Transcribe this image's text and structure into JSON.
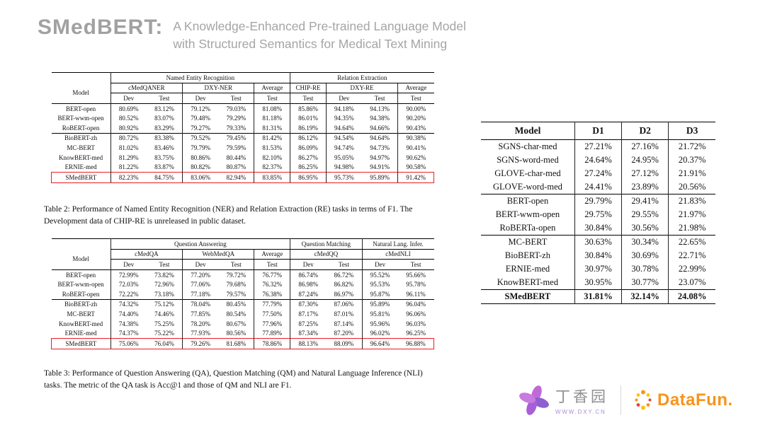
{
  "title": {
    "brand": "SMedBERT:",
    "subtitle_lines": [
      "A Knowledge-Enhanced Pre-trained Language Model",
      "with Structured Semantics for Medical Text Mining"
    ]
  },
  "table2": {
    "model_label": "Model",
    "group_headers": [
      "Named Entity Recognition",
      "Relation Extraction"
    ],
    "dataset_headers": [
      "cMedQANER",
      "DXY-NER",
      "Average",
      "CHIP-RE",
      "DXY-RE",
      "Average"
    ],
    "split_headers": [
      "Dev",
      "Test",
      "Dev",
      "Test",
      "Test",
      "Test",
      "Dev",
      "Test",
      "Test"
    ],
    "groups": [
      {
        "rows": [
          {
            "model": "BERT-open",
            "values": [
              "80.69%",
              "83.12%",
              "79.12%",
              "79.03%",
              "81.08%",
              "85.86%",
              "94.18%",
              "94.13%",
              "90.00%"
            ]
          },
          {
            "model": "BERT-wwm-open",
            "values": [
              "80.52%",
              "83.07%",
              "79.48%",
              "79.29%",
              "81.18%",
              "86.01%",
              "94.35%",
              "94.38%",
              "90.20%"
            ]
          },
          {
            "model": "RoBERT-open",
            "values": [
              "80.92%",
              "83.29%",
              "79.27%",
              "79.33%",
              "81.31%",
              "86.19%",
              "94.64%",
              "94.66%",
              "90.43%"
            ]
          }
        ]
      },
      {
        "rows": [
          {
            "model": "BioBERT-zh",
            "values": [
              "80.72%",
              "83.38%",
              "79.52%",
              "79.45%",
              "81.42%",
              "86.12%",
              "94.54%",
              "94.64%",
              "90.38%"
            ]
          },
          {
            "model": "MC-BERT",
            "values": [
              "81.02%",
              "83.46%",
              "79.79%",
              "79.59%",
              "81.53%",
              "86.09%",
              "94.74%",
              "94.73%",
              "90.41%"
            ]
          },
          {
            "model": "KnowBERT-med",
            "values": [
              "81.29%",
              "83.75%",
              "80.86%",
              "80.44%",
              "82.10%",
              "86.27%",
              "95.05%",
              "94.97%",
              "90.62%"
            ]
          },
          {
            "model": "ERNIE-med",
            "values": [
              "81.22%",
              "83.87%",
              "80.82%",
              "80.87%",
              "82.37%",
              "86.25%",
              "94.98%",
              "94.91%",
              "90.58%"
            ]
          }
        ]
      },
      {
        "rows": [
          {
            "model": "SMedBERT",
            "highlight": true,
            "values": [
              "82.23%",
              "84.75%",
              "83.06%",
              "82.94%",
              "83.85%",
              "86.95%",
              "95.73%",
              "95.89%",
              "91.42%"
            ]
          }
        ]
      }
    ],
    "caption": "Table 2: Performance of Named Entity Recognition (NER) and Relation Extraction (RE) tasks in terms of F1. The Development data of CHIP-RE is unreleased in public dataset."
  },
  "table3": {
    "model_label": "Model",
    "group_headers": [
      "Question Answering",
      "Question Matching",
      "Natural Lang. Infer."
    ],
    "dataset_headers": [
      "cMedQA",
      "WebMedQA",
      "Average",
      "cMedQQ",
      "cMedNLI"
    ],
    "split_headers": [
      "Dev",
      "Test",
      "Dev",
      "Test",
      "Test",
      "Dev",
      "Test",
      "Dev",
      "Test"
    ],
    "groups": [
      {
        "rows": [
          {
            "model": "BERT-open",
            "values": [
              "72.99%",
              "73.82%",
              "77.20%",
              "79.72%",
              "76.77%",
              "86.74%",
              "86.72%",
              "95.52%",
              "95.66%"
            ]
          },
          {
            "model": "BERT-wwm-open",
            "values": [
              "72.03%",
              "72.96%",
              "77.06%",
              "79.68%",
              "76.32%",
              "86.98%",
              "86.82%",
              "95.53%",
              "95.78%"
            ]
          },
          {
            "model": "RoBERT-open",
            "values": [
              "72.22%",
              "73.18%",
              "77.18%",
              "79.57%",
              "76.38%",
              "87.24%",
              "86.97%",
              "95.87%",
              "96.11%"
            ]
          }
        ]
      },
      {
        "rows": [
          {
            "model": "BioBERT-zh",
            "values": [
              "74.32%",
              "75.12%",
              "78.04%",
              "80.45%",
              "77.79%",
              "87.30%",
              "87.06%",
              "95.89%",
              "96.04%"
            ]
          },
          {
            "model": "MC-BERT",
            "values": [
              "74.40%",
              "74.46%",
              "77.85%",
              "80.54%",
              "77.50%",
              "87.17%",
              "87.01%",
              "95.81%",
              "96.06%"
            ]
          },
          {
            "model": "KnowBERT-med",
            "values": [
              "74.38%",
              "75.25%",
              "78.20%",
              "80.67%",
              "77.96%",
              "87.25%",
              "87.14%",
              "95.96%",
              "96.03%"
            ]
          },
          {
            "model": "ERNIE-med",
            "values": [
              "74.37%",
              "75.22%",
              "77.93%",
              "80.56%",
              "77.89%",
              "87.34%",
              "87.20%",
              "96.02%",
              "96.25%"
            ]
          }
        ]
      },
      {
        "rows": [
          {
            "model": "SMedBERT",
            "highlight": true,
            "values": [
              "75.06%",
              "76.04%",
              "79.26%",
              "81.68%",
              "78.86%",
              "88.13%",
              "88.09%",
              "96.64%",
              "96.88%"
            ]
          }
        ]
      }
    ],
    "caption": "Table 3: Performance of Question Answering (QA), Question Matching (QM) and Natural Language Inference (NLI) tasks. The metric of the QA task is Acc@1 and those of QM and NLI are F1."
  },
  "tableD": {
    "headers": [
      "Model",
      "D1",
      "D2",
      "D3"
    ],
    "groups": [
      {
        "rows": [
          {
            "model": "SGNS-char-med",
            "values": [
              "27.21%",
              "27.16%",
              "21.72%"
            ]
          },
          {
            "model": "SGNS-word-med",
            "values": [
              "24.64%",
              "24.95%",
              "20.37%"
            ]
          },
          {
            "model": "GLOVE-char-med",
            "values": [
              "27.24%",
              "27.12%",
              "21.91%"
            ]
          },
          {
            "model": "GLOVE-word-med",
            "values": [
              "24.41%",
              "23.89%",
              "20.56%"
            ]
          }
        ]
      },
      {
        "rows": [
          {
            "model": "BERT-open",
            "values": [
              "29.79%",
              "29.41%",
              "21.83%"
            ]
          },
          {
            "model": "BERT-wwm-open",
            "values": [
              "29.75%",
              "29.55%",
              "21.97%"
            ]
          },
          {
            "model": "RoBERTa-open",
            "values": [
              "30.84%",
              "30.56%",
              "21.98%"
            ]
          }
        ]
      },
      {
        "rows": [
          {
            "model": "MC-BERT",
            "values": [
              "30.63%",
              "30.34%",
              "22.65%"
            ]
          },
          {
            "model": "BioBERT-zh",
            "values": [
              "30.84%",
              "30.69%",
              "22.71%"
            ]
          },
          {
            "model": "ERNIE-med",
            "values": [
              "30.97%",
              "30.78%",
              "22.99%"
            ]
          },
          {
            "model": "KnowBERT-med",
            "values": [
              "30.95%",
              "30.77%",
              "23.07%"
            ]
          }
        ]
      },
      {
        "rows": [
          {
            "model": "SMedBERT",
            "bold": true,
            "values": [
              "31.81%",
              "32.14%",
              "24.08%"
            ]
          }
        ]
      }
    ]
  },
  "footer": {
    "dxy_name": "丁香园",
    "dxy_url": "WWW.DXY.CN",
    "datafun_name": "DataFun."
  },
  "colors": {
    "highlight_box": "#ed1c24",
    "title_gray": "#a1a1a1",
    "dxy_purple": "#a15cd0",
    "datafun_orange": "#f7941d"
  }
}
